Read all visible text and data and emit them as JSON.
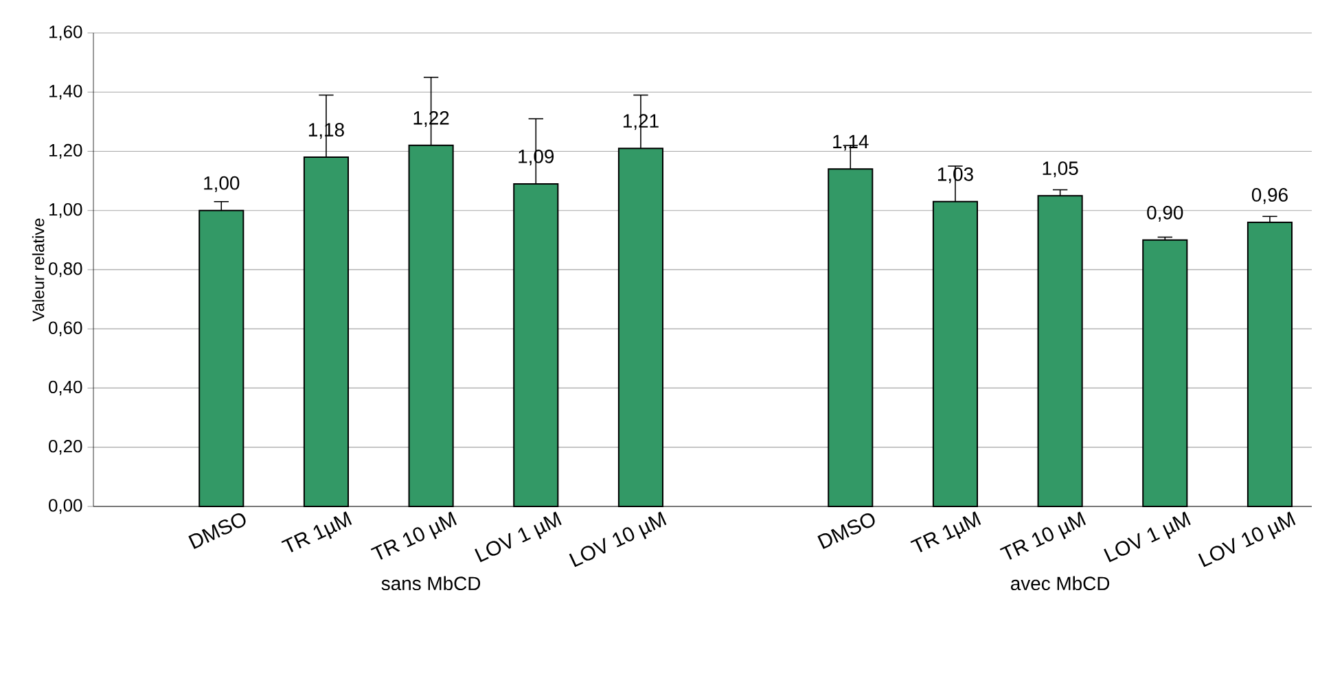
{
  "chart_data": {
    "type": "bar",
    "ylabel": "Valeur relative",
    "categories": [
      "DMSO",
      "TR 1µM",
      "TR 10 µM",
      "LOV 1 µM",
      "LOV 10 µM",
      null,
      "DMSO",
      "TR 1µM",
      "TR 10 µM",
      "LOV 1 µM",
      "LOV 10 µM"
    ],
    "values": [
      1.0,
      1.18,
      1.22,
      1.09,
      1.21,
      null,
      1.14,
      1.03,
      1.05,
      0.9,
      0.96
    ],
    "value_labels": [
      "1,00",
      "1,18",
      "1,22",
      "1,09",
      "1,21",
      null,
      "1,14",
      "1,03",
      "1,05",
      "0,90",
      "0,96"
    ],
    "errors": [
      [
        1.0,
        1.03
      ],
      [
        1.18,
        1.39
      ],
      [
        1.22,
        1.45
      ],
      [
        1.09,
        1.31
      ],
      [
        1.21,
        1.39
      ],
      null,
      [
        1.14,
        1.22
      ],
      [
        1.03,
        1.15
      ],
      [
        1.05,
        1.07
      ],
      [
        0.9,
        0.91
      ],
      [
        0.96,
        0.98
      ]
    ],
    "color": "#339966",
    "ylim": [
      0,
      1.6
    ],
    "yticks": [
      {
        "value": 0,
        "label": "0,00"
      },
      {
        "value": 0.2,
        "label": "0,20"
      },
      {
        "value": 0.4,
        "label": "0,40"
      },
      {
        "value": 0.6,
        "label": "0,60"
      },
      {
        "value": 0.8,
        "label": "0,80"
      },
      {
        "value": 1.0,
        "label": "1,00"
      },
      {
        "value": 1.2,
        "label": "1,20"
      },
      {
        "value": 1.4,
        "label": "1,40"
      },
      {
        "value": 1.6,
        "label": "1,60"
      }
    ],
    "grid": "y",
    "annotations": [
      "sans MbCD",
      "avec MbCD"
    ]
  }
}
